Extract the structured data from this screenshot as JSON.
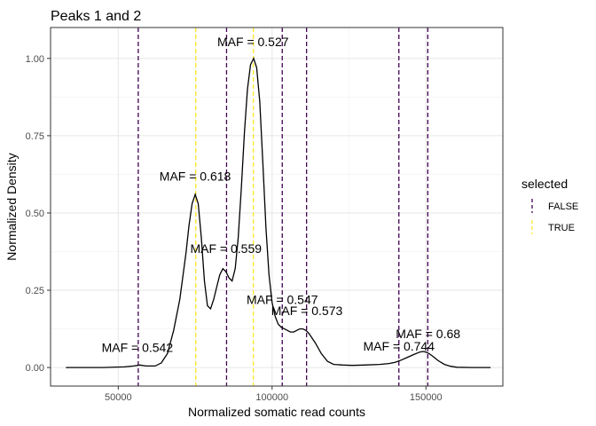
{
  "chart_data": {
    "type": "line",
    "title": "Peaks 1 and 2",
    "xlabel": "Normalized somatic read counts",
    "ylabel": "Normalized Density",
    "xlim": [
      28000,
      175000
    ],
    "ylim": [
      -0.06,
      1.1
    ],
    "x_ticks": [
      50000,
      100000,
      150000
    ],
    "x_tick_labels": [
      "50000",
      "100000",
      "150000"
    ],
    "y_ticks": [
      0.0,
      0.25,
      0.5,
      0.75,
      1.0
    ],
    "y_tick_labels": [
      "0.00",
      "0.25",
      "0.50",
      "0.75",
      "1.00"
    ],
    "grid": true,
    "series": [
      {
        "x": [
          33000,
          45000,
          52000,
          55000,
          57000,
          59000,
          62000,
          64000,
          66000,
          68000,
          70000,
          72000,
          73000,
          74000,
          75000,
          76000,
          77000,
          78000,
          79000,
          80000,
          81000,
          82000,
          83000,
          84000,
          85000,
          86000,
          87000,
          88000,
          89000,
          90000,
          91000,
          92000,
          93000,
          94000,
          95000,
          96000,
          97000,
          98000,
          99000,
          100000,
          101000,
          102000,
          103000,
          104000,
          105000,
          106000,
          107000,
          108000,
          109000,
          110000,
          111000,
          112000,
          114000,
          116000,
          118000,
          120000,
          123000,
          126000,
          130000,
          135000,
          138000,
          140000,
          142000,
          144000,
          146000,
          148000,
          149000,
          150000,
          151000,
          152000,
          154000,
          156000,
          158000,
          160000,
          165000,
          171000
        ],
        "y": [
          0.0,
          0.0,
          0.002,
          0.005,
          0.008,
          0.005,
          0.005,
          0.015,
          0.045,
          0.12,
          0.22,
          0.37,
          0.46,
          0.53,
          0.56,
          0.53,
          0.42,
          0.28,
          0.2,
          0.19,
          0.22,
          0.26,
          0.3,
          0.32,
          0.31,
          0.29,
          0.28,
          0.32,
          0.42,
          0.58,
          0.76,
          0.9,
          0.98,
          1.0,
          0.97,
          0.86,
          0.66,
          0.45,
          0.3,
          0.21,
          0.165,
          0.14,
          0.13,
          0.125,
          0.12,
          0.115,
          0.115,
          0.12,
          0.125,
          0.125,
          0.12,
          0.11,
          0.08,
          0.045,
          0.02,
          0.01,
          0.008,
          0.007,
          0.008,
          0.01,
          0.013,
          0.017,
          0.024,
          0.033,
          0.042,
          0.05,
          0.052,
          0.05,
          0.045,
          0.038,
          0.022,
          0.01,
          0.004,
          0.001,
          0.0,
          0.0
        ]
      }
    ],
    "vlines": [
      {
        "x": 56500,
        "selected": "FALSE"
      },
      {
        "x": 75200,
        "selected": "TRUE"
      },
      {
        "x": 85200,
        "selected": "FALSE"
      },
      {
        "x": 93900,
        "selected": "TRUE"
      },
      {
        "x": 103300,
        "selected": "FALSE"
      },
      {
        "x": 111200,
        "selected": "FALSE"
      },
      {
        "x": 141200,
        "selected": "FALSE"
      },
      {
        "x": 150600,
        "selected": "FALSE"
      }
    ],
    "annotations": [
      {
        "text": "MAF = 0.527",
        "x": 93800,
        "y": 1.04
      },
      {
        "text": "MAF = 0.618",
        "x": 75000,
        "y": 0.605
      },
      {
        "text": "MAF = 0.559",
        "x": 85000,
        "y": 0.37
      },
      {
        "text": "MAF = 0.547",
        "x": 103300,
        "y": 0.205
      },
      {
        "text": "MAF = 0.573",
        "x": 111300,
        "y": 0.17
      },
      {
        "text": "MAF = 0.542",
        "x": 56200,
        "y": 0.05
      },
      {
        "text": "MAF = 0.68",
        "x": 150700,
        "y": 0.095
      },
      {
        "text": "MAF = 0.744",
        "x": 141200,
        "y": 0.055
      }
    ],
    "legend": {
      "title": "selected",
      "position": "right",
      "items": [
        {
          "label": "FALSE",
          "color": "#440154"
        },
        {
          "label": "TRUE",
          "color": "#fde725"
        }
      ]
    }
  }
}
